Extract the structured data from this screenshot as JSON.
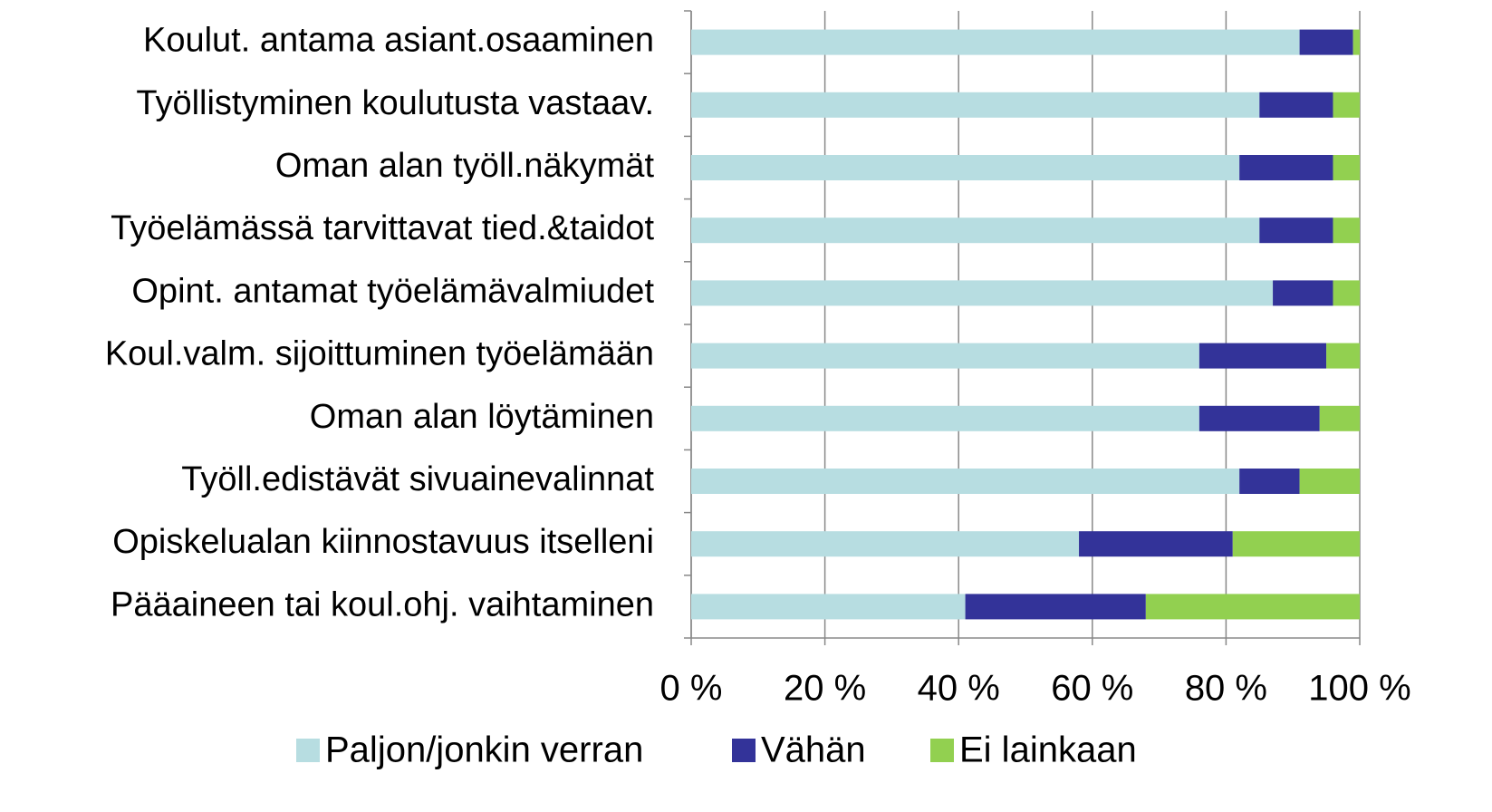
{
  "chart_data": {
    "type": "stacked_barh",
    "categories": [
      "Koulut. antama asiant.osaaminen",
      "Työllistyminen koulutusta vastaav.",
      "Oman alan työll.näkymät",
      "Työelämässä tarvittavat tied.&taidot",
      "Opint. antamat työelämävalmiudet",
      "Koul.valm. sijoittuminen työelämään",
      "Oman alan löytäminen",
      "Työll.edistävät sivuainevalinnat",
      "Opiskelualan kiinnostavuus itselleni",
      "Pääaineen tai koul.ohj. vaihtaminen"
    ],
    "series": [
      {
        "name": "Paljon/jonkin verran",
        "color": "#b7dde1",
        "values": [
          91,
          85,
          82,
          85,
          87,
          76,
          76,
          82,
          58,
          41
        ]
      },
      {
        "name": "Vähän",
        "color": "#333399",
        "values": [
          8,
          11,
          14,
          11,
          9,
          19,
          18,
          9,
          23,
          27
        ]
      },
      {
        "name": "Ei lainkaan",
        "color": "#92d050",
        "values": [
          1,
          4,
          4,
          4,
          4,
          5,
          6,
          9,
          19,
          32
        ]
      }
    ],
    "xlim": [
      0,
      100
    ],
    "xticks": [
      {
        "value": 0,
        "label": "0 %"
      },
      {
        "value": 20,
        "label": "20 %"
      },
      {
        "value": 40,
        "label": "40 %"
      },
      {
        "value": 60,
        "label": "60 %"
      },
      {
        "value": 80,
        "label": "80 %"
      },
      {
        "value": 100,
        "label": "100 %"
      }
    ],
    "grid": true,
    "legend": "bottom"
  }
}
